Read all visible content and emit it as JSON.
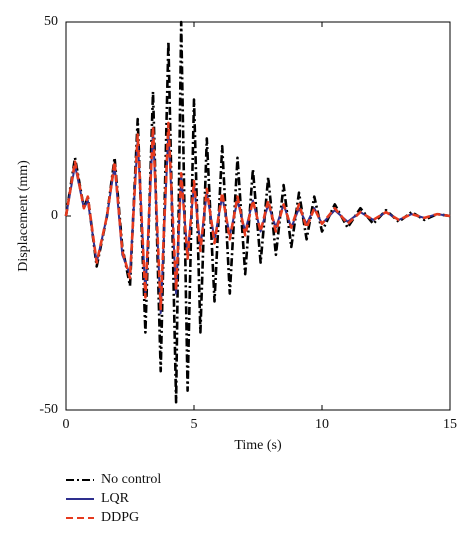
{
  "chart_data": {
    "type": "line",
    "xlabel": "Time (s)",
    "ylabel": "Displacement (mm)",
    "x": [
      0,
      0.35,
      0.7,
      0.85,
      1.2,
      1.6,
      1.9,
      2.2,
      2.5,
      2.8,
      3.1,
      3.4,
      3.7,
      4.0,
      4.3,
      4.5,
      4.75,
      5.0,
      5.25,
      5.5,
      5.8,
      6.1,
      6.4,
      6.7,
      7.0,
      7.3,
      7.6,
      7.9,
      8.2,
      8.5,
      8.8,
      9.1,
      9.4,
      9.7,
      10.0,
      10.5,
      11,
      11.5,
      12,
      12.5,
      13,
      13.5,
      14,
      14.5,
      15
    ],
    "series": [
      {
        "name": "No control",
        "color": "#000000",
        "dash": "dashdot",
        "values": [
          0,
          15,
          2,
          5,
          -13,
          0,
          15,
          -8,
          -18,
          25,
          -30,
          32,
          -40,
          45,
          -48,
          50,
          -45,
          30,
          -30,
          20,
          -22,
          18,
          -20,
          15,
          -15,
          12,
          -12,
          10,
          -10,
          8,
          -8,
          6,
          -6,
          5,
          -4,
          3,
          -3,
          2,
          -2,
          1.5,
          -1.5,
          1,
          -1,
          0.5,
          0
        ]
      },
      {
        "name": "LQR",
        "color": "#2e2f8e",
        "dash": "solid",
        "values": [
          0,
          13,
          2,
          4,
          -12,
          0,
          13,
          -10,
          -15,
          20,
          -20,
          22,
          -25,
          22,
          -20,
          10,
          -10,
          8,
          -8,
          6,
          -6,
          5,
          -5,
          4,
          -4,
          4,
          -4,
          3,
          -3,
          3,
          -3,
          2,
          -2,
          2,
          -2,
          1.5,
          -1.5,
          1,
          -1,
          1,
          -1,
          0.5,
          -0.5,
          0.5,
          0
        ]
      },
      {
        "name": "DDPG",
        "color": "#e63a1e",
        "dash": "dashed",
        "values": [
          0,
          14,
          2,
          5,
          -12,
          0,
          14,
          -9,
          -16,
          21,
          -21,
          23,
          -24,
          24,
          -19,
          11,
          -11,
          9,
          -9,
          7,
          -7,
          6,
          -6,
          5,
          -5,
          4,
          -4,
          4,
          -4,
          3,
          -3,
          3,
          -3,
          2,
          -2,
          2,
          -2,
          1,
          -1,
          1,
          -1,
          0.5,
          -0.5,
          0.5,
          0
        ]
      }
    ],
    "xlim": [
      0,
      15
    ],
    "xticks": [
      0,
      5,
      10,
      15
    ],
    "ylim": [
      -50,
      50
    ],
    "yticks": [
      -50,
      0,
      50
    ],
    "legend": "bottom-left"
  }
}
